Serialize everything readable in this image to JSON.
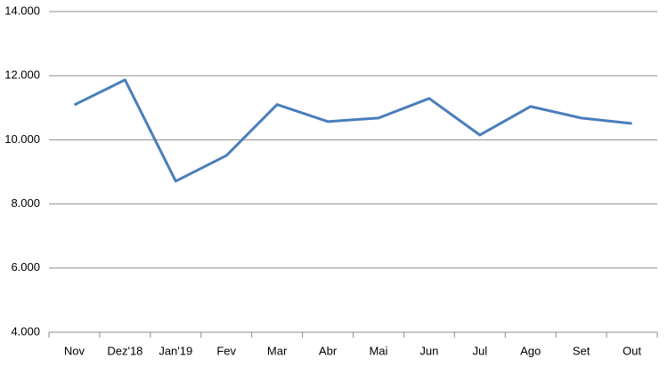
{
  "chart_data": {
    "type": "line",
    "categories": [
      "Nov",
      "Dez'18",
      "Jan'19",
      "Fev",
      "Mar",
      "Abr",
      "Mai",
      "Jun",
      "Jul",
      "Ago",
      "Set",
      "Out"
    ],
    "series": [
      {
        "color": "#4a7ebb",
        "values": [
          11090,
          11870,
          8710,
          9510,
          11100,
          10570,
          10680,
          11290,
          10150,
          11040,
          10680,
          10510
        ]
      }
    ],
    "ylim": [
      4000,
      14000
    ],
    "yticks": [
      {
        "value": 4000,
        "label": "4.000"
      },
      {
        "value": 6000,
        "label": "6.000"
      },
      {
        "value": 8000,
        "label": "8.000"
      },
      {
        "value": 10000,
        "label": "10.000"
      },
      {
        "value": 12000,
        "label": "12.000"
      },
      {
        "value": 14000,
        "label": "14.000"
      }
    ],
    "grid": true
  }
}
